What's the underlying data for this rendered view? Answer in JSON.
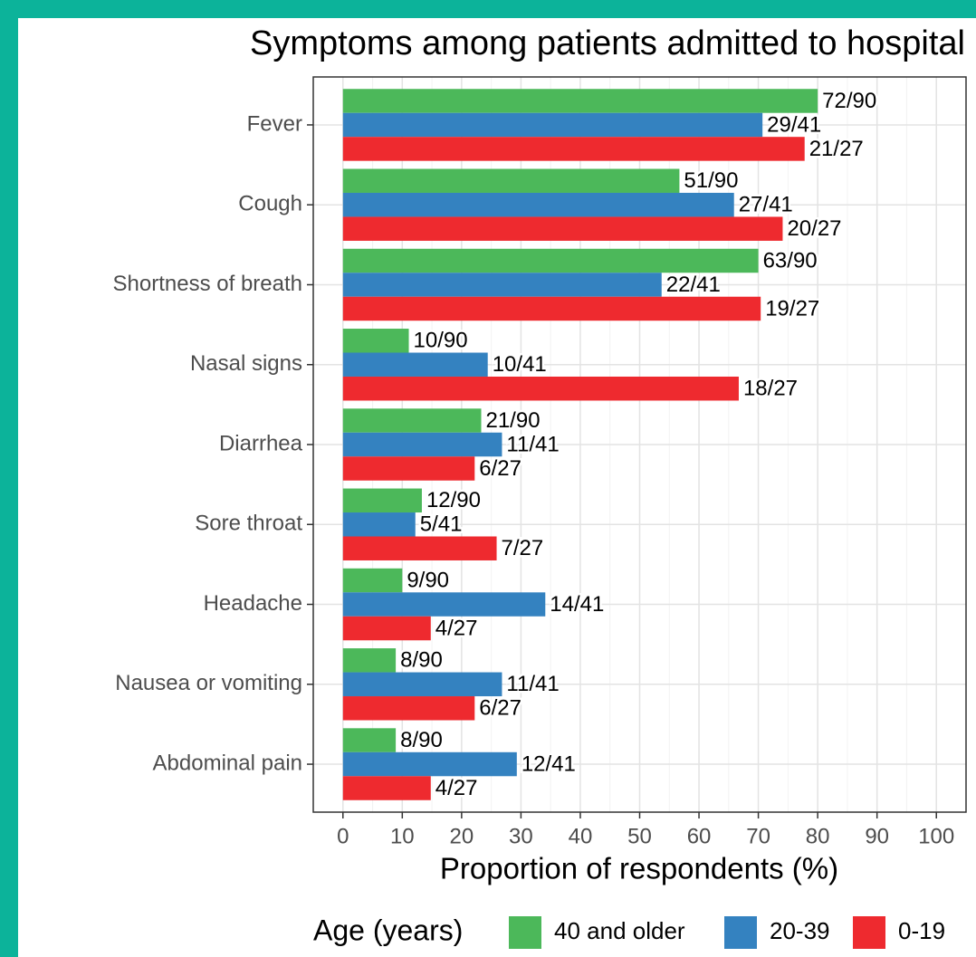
{
  "chart_data": {
    "type": "bar",
    "orientation": "horizontal",
    "title": "Symptoms among patients admitted to hospital",
    "xlabel": "Proportion of respondents (%)",
    "legend_title": "Age (years)",
    "categories": [
      "Fever",
      "Cough",
      "Shortness of breath",
      "Nasal signs",
      "Diarrhea",
      "Sore throat",
      "Headache",
      "Nausea or vomiting",
      "Abdominal pain"
    ],
    "series": [
      {
        "name": "40 and older",
        "color": "#4cb85a",
        "values": [
          80,
          56.7,
          70,
          11.1,
          23.3,
          13.3,
          10,
          8.9,
          8.9
        ],
        "value_labels": [
          "72/90",
          "51/90",
          "63/90",
          "10/90",
          "21/90",
          "12/90",
          "9/90",
          "8/90",
          "8/90"
        ]
      },
      {
        "name": "20-39",
        "color": "#3482c0",
        "values": [
          70.7,
          65.9,
          53.7,
          24.4,
          26.8,
          12.2,
          34.1,
          26.8,
          29.3
        ],
        "value_labels": [
          "29/41",
          "27/41",
          "22/41",
          "10/41",
          "11/41",
          "5/41",
          "14/41",
          "11/41",
          "12/41"
        ]
      },
      {
        "name": "0-19",
        "color": "#ee2a2f",
        "values": [
          77.8,
          74.1,
          70.4,
          66.7,
          22.2,
          25.9,
          14.8,
          22.2,
          14.8
        ],
        "value_labels": [
          "21/27",
          "20/27",
          "19/27",
          "18/27",
          "6/27",
          "7/27",
          "4/27",
          "6/27",
          "4/27"
        ]
      }
    ],
    "xlim": [
      -5,
      105
    ],
    "xticks": [
      0,
      10,
      20,
      30,
      40,
      50,
      60,
      70,
      80,
      90,
      100
    ],
    "minor_xticks": [
      5,
      15,
      25,
      35,
      45,
      55,
      65,
      75,
      85,
      95
    ],
    "grid": true,
    "legend_position": "bottom"
  }
}
